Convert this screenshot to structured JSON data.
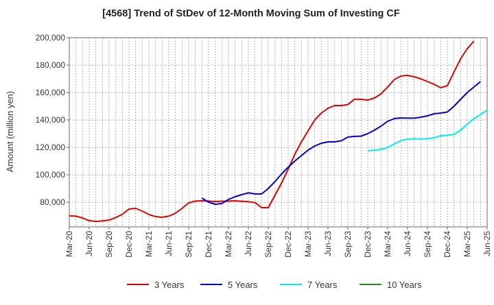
{
  "chart_data": {
    "type": "line",
    "title": "[4568]  Trend of StDev of 12-Month Moving Sum of Investing CF",
    "xlabel": "",
    "ylabel": "Amount (million yen)",
    "ylim": [
      62000,
      200000
    ],
    "y_ticks": [
      80000,
      100000,
      120000,
      140000,
      160000,
      180000,
      200000
    ],
    "y_tick_labels": [
      "80,000",
      "100,000",
      "120,000",
      "140,000",
      "160,000",
      "180,000",
      "200,000"
    ],
    "x_tick_labels": [
      "Mar-20",
      "Jun-20",
      "Sep-20",
      "Dec-20",
      "Mar-21",
      "Jun-21",
      "Sep-21",
      "Dec-21",
      "Mar-22",
      "Jun-22",
      "Sep-22",
      "Dec-22",
      "Mar-23",
      "Jun-23",
      "Sep-23",
      "Dec-23",
      "Mar-24",
      "Jun-24",
      "Sep-24",
      "Dec-24",
      "Mar-25",
      "Jun-25"
    ],
    "grid": true,
    "legend_position": "bottom",
    "series": [
      {
        "name": "3 Years",
        "color": "#dd0000",
        "start_month": "Mar-20",
        "values": [
          70000,
          69800,
          68500,
          66500,
          66000,
          66300,
          67000,
          68800,
          71200,
          75000,
          75500,
          73500,
          71000,
          69500,
          69000,
          69800,
          72000,
          75500,
          79500,
          80800,
          81000,
          80800,
          80500,
          80700,
          80800,
          81000,
          80700,
          80400,
          79700,
          76000,
          76000,
          85000,
          94000,
          104000,
          115000,
          124000,
          132000,
          140000,
          145000,
          148500,
          150500,
          150500,
          151200,
          155200,
          155000,
          154500,
          156000,
          159000,
          164000,
          169500,
          172000,
          172500,
          171500,
          170000,
          168000,
          166000,
          163500,
          165000,
          175000,
          184500,
          192000,
          197500
        ]
      },
      {
        "name": "5 Years",
        "color": "#0000cc",
        "start_month": "Nov-21",
        "values": [
          83000,
          80000,
          78500,
          79000,
          82000,
          84000,
          85500,
          86800,
          86000,
          86000,
          90000,
          95000,
          100500,
          105500,
          110000,
          114000,
          118000,
          121000,
          123000,
          124000,
          124000,
          124800,
          127500,
          128000,
          128200,
          130000,
          132500,
          135500,
          139000,
          141000,
          141500,
          141300,
          141300,
          142000,
          143000,
          144500,
          145000,
          145800,
          150000,
          155000,
          160000,
          164000,
          168000
        ]
      },
      {
        "name": "7 Years",
        "color": "#00eeee",
        "start_month": "Dec-23",
        "values": [
          117500,
          118000,
          118500,
          120000,
          122500,
          125000,
          126000,
          126300,
          126100,
          126300,
          127000,
          128500,
          128800,
          129500,
          132500,
          137000,
          141000,
          144000,
          147000
        ]
      },
      {
        "name": "10 Years",
        "color": "#228822",
        "start_month": "Mar-25",
        "values": []
      }
    ]
  }
}
